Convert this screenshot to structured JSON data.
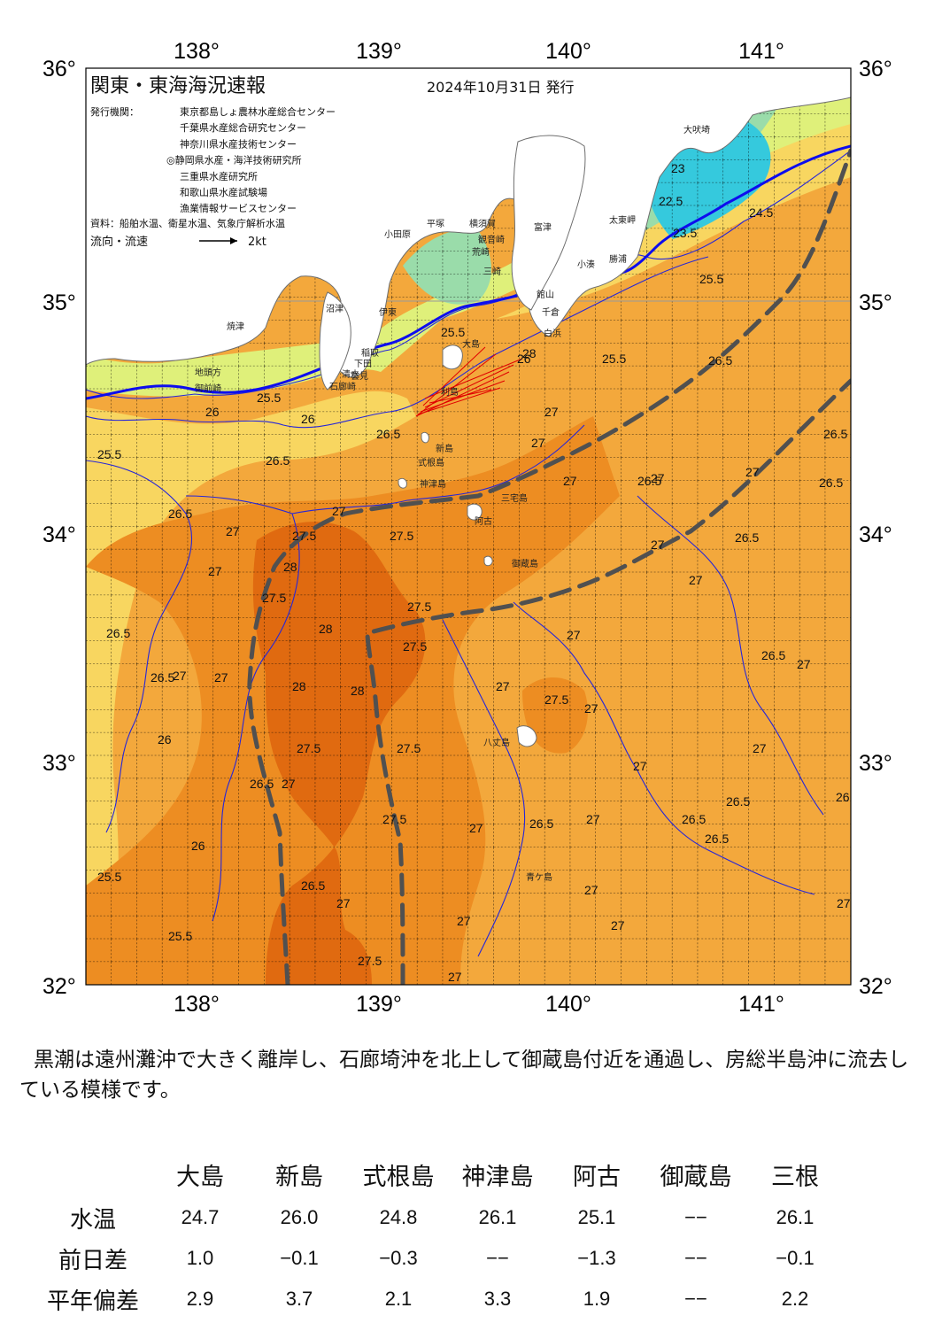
{
  "map": {
    "title": "関東・東海海況速報",
    "issue_date": "2024年10月31日 発行",
    "issuers_label": "発行機関：",
    "issuers": [
      "東京都島しょ農林水産総合センター",
      "千葉県水産総合研究センター",
      "神奈川県水産技術センター",
      "◎静岡県水産・海洋技術研究所",
      "三重県水産研究所",
      "和歌山県水産試験場",
      "漁業情報サービスセンター"
    ],
    "source": "資料：船舶水温、衛星水温、気象庁解析水温",
    "legend_label": "流向・流速",
    "legend_scale": "2kt",
    "lon_labels": [
      "138°",
      "139°",
      "140°",
      "141°"
    ],
    "lat_labels": [
      "36°",
      "35°",
      "34°",
      "33°",
      "32°"
    ],
    "colors": {
      "t_lt_24": "#35c9dd",
      "t_24_25": "#9adcaa",
      "t_25_255": "#dff07a",
      "t_255_26": "#f8d660",
      "t_26_27": "#f3a83c",
      "t_27_28": "#ed8d22",
      "t_gt_28": "#e06a10",
      "land": "#ffffff",
      "land_outline": "#6e6e6e",
      "contour": "#2626d8",
      "contour_thick": "#0d0dee",
      "kuroshio_axis": "#505050",
      "current_vector": "#e00000"
    },
    "contour_labels": [
      "25.5",
      "26",
      "26.5",
      "27",
      "27.5",
      "28",
      "22.5",
      "23",
      "23.5",
      "24.5"
    ],
    "place_names": [
      "大吠埼",
      "太東岬",
      "勝浦",
      "小湊",
      "富津",
      "館山",
      "千倉",
      "白浜",
      "観音崎",
      "三崎",
      "横須賀",
      "荒崎",
      "平塚",
      "小田原",
      "伊東",
      "稲取",
      "下田",
      "石廊崎",
      "雲見",
      "大島",
      "利島",
      "新島",
      "式根島",
      "神津島",
      "三宅島",
      "御蔵島",
      "八丈島",
      "青ケ島",
      "焼津",
      "御前崎",
      "地頭方",
      "清水",
      "沼津",
      "阿古"
    ]
  },
  "summary": "黒潮は遠州灘沖で大きく離岸し、石廊埼沖を北上して御蔵島付近を通過し、房総半島沖に流去している模様です。",
  "table": {
    "columns": [
      "大島",
      "新島",
      "式根島",
      "神津島",
      "阿古",
      "御蔵島",
      "三根"
    ],
    "rows": [
      {
        "label": "水温",
        "values": [
          "24.7",
          "26.0",
          "24.8",
          "26.1",
          "25.1",
          "−−",
          "26.1"
        ]
      },
      {
        "label": "前日差",
        "values": [
          "1.0",
          "−0.1",
          "−0.3",
          "−−",
          "−1.3",
          "−−",
          "−0.1"
        ]
      },
      {
        "label": "平年偏差",
        "values": [
          "2.9",
          "3.7",
          "2.1",
          "3.3",
          "1.9",
          "−−",
          "2.2"
        ]
      }
    ]
  }
}
